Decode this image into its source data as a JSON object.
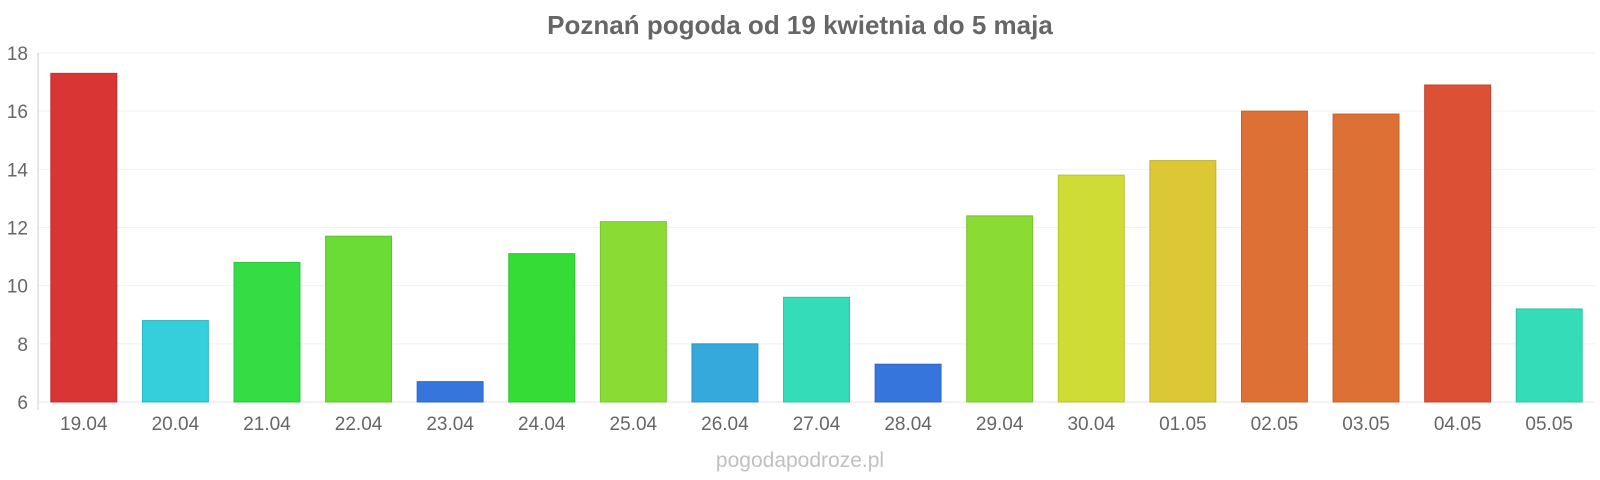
{
  "chart_data": {
    "type": "bar",
    "title": "Poznań pogoda od 19 kwietnia do 5 maja",
    "categories": [
      "19.04",
      "20.04",
      "21.04",
      "22.04",
      "23.04",
      "24.04",
      "25.04",
      "26.04",
      "27.04",
      "28.04",
      "29.04",
      "30.04",
      "01.05",
      "02.05",
      "03.05",
      "04.05",
      "05.05"
    ],
    "values": [
      17.3,
      8.8,
      10.8,
      11.7,
      6.7,
      11.1,
      12.2,
      8.0,
      9.6,
      7.3,
      12.4,
      13.8,
      14.3,
      16.0,
      15.9,
      16.9,
      9.2
    ],
    "colors": [
      "#d93535",
      "#35cfdc",
      "#35dc44",
      "#6adc35",
      "#3575dc",
      "#35dc35",
      "#8adc35",
      "#35a8dc",
      "#35dcb8",
      "#3575dc",
      "#8adc35",
      "#cfdc35",
      "#dcc835",
      "#dc7035",
      "#dc7035",
      "#dc5035",
      "#35dcb8"
    ],
    "ylim": [
      6,
      18
    ],
    "yticks": [
      6,
      8,
      10,
      12,
      14,
      16,
      18
    ],
    "grid": true,
    "xlabel": "",
    "ylabel": ""
  },
  "watermark": "pogodapodroze.pl"
}
